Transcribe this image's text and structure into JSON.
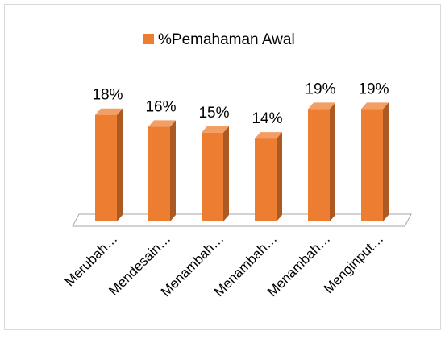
{
  "chart_data": {
    "type": "bar3d",
    "categories": [
      "Merubah…",
      "Mendesain…",
      "Menambah…",
      "Menambah…",
      "Menambah…",
      "Menginput…"
    ],
    "series": [
      {
        "name": "%Pemahaman Awal",
        "color": "#ED7D31",
        "values": [
          18,
          16,
          15,
          14,
          19,
          19
        ],
        "value_labels": [
          "18%",
          "16%",
          "15%",
          "14%",
          "19%",
          "19%"
        ]
      }
    ],
    "legend": "top"
  }
}
